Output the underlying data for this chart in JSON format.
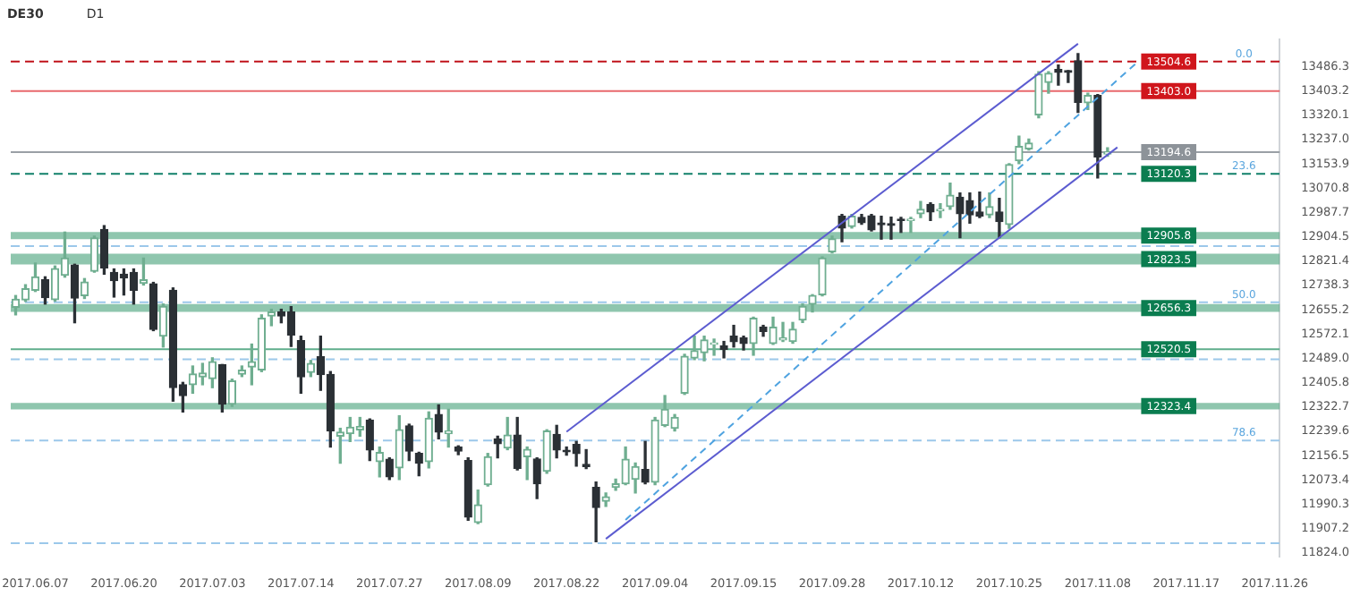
{
  "chart_data": {
    "type": "candlestick",
    "title": "DE30",
    "subtitle": "D1",
    "categories": [
      null,
      null,
      "2017.06.07",
      null,
      null,
      null,
      null,
      null,
      null,
      null,
      null,
      "2017.06.20",
      null,
      null,
      null,
      null,
      null,
      null,
      null,
      null,
      "2017.07.03",
      null,
      null,
      null,
      null,
      null,
      null,
      null,
      null,
      "2017.07.14",
      null,
      null,
      null,
      null,
      null,
      null,
      null,
      null,
      "2017.07.27",
      null,
      null,
      null,
      null,
      null,
      null,
      null,
      null,
      "2017.08.09",
      null,
      null,
      null,
      null,
      null,
      null,
      null,
      null,
      "2017.08.22",
      null,
      null,
      null,
      null,
      null,
      null,
      null,
      null,
      "2017.09.04",
      null,
      null,
      null,
      null,
      null,
      null,
      null,
      null,
      "2017.09.15",
      null,
      null,
      null,
      null,
      null,
      null,
      null,
      null,
      "2017.09.28",
      null,
      null,
      null,
      null,
      null,
      null,
      null,
      null,
      "2017.10.12",
      null,
      null,
      null,
      null,
      null,
      null,
      null,
      null,
      "2017.10.25",
      null,
      null,
      null,
      null,
      null,
      null,
      null,
      null,
      "2017.11.08",
      null,
      null,
      null,
      null,
      null,
      null,
      null,
      null,
      "2017.11.17",
      null,
      null,
      null,
      null,
      null,
      null,
      null,
      null,
      "2017.11.26"
    ],
    "ohlc": [
      [
        12664,
        12704,
        12638,
        12691
      ],
      [
        12689,
        12741,
        12684,
        12727
      ],
      [
        12722,
        12815,
        12718,
        12768
      ],
      [
        12758,
        12768,
        12675,
        12697
      ],
      [
        12690,
        12805,
        12685,
        12796
      ],
      [
        12773,
        12921,
        12767,
        12832
      ],
      [
        12808,
        12811,
        12611,
        12695
      ],
      [
        12704,
        12762,
        12694,
        12750
      ],
      [
        12787,
        12907,
        12784,
        12901
      ],
      [
        12930,
        12943,
        12777,
        12799
      ],
      [
        12783,
        12795,
        12699,
        12755
      ],
      [
        12777,
        12795,
        12706,
        12764
      ],
      [
        12783,
        12795,
        12675,
        12722
      ],
      [
        12746,
        12832,
        12740,
        12758
      ],
      [
        12744,
        12749,
        12584,
        12588
      ],
      [
        12565,
        12675,
        12528,
        12667
      ],
      [
        12722,
        12730,
        12343,
        12389
      ],
      [
        12399,
        12407,
        12306,
        12362
      ],
      [
        12399,
        12463,
        12370,
        12436
      ],
      [
        12426,
        12472,
        12399,
        12439
      ],
      [
        12420,
        12491,
        12389,
        12478
      ],
      [
        12468,
        12468,
        12306,
        12333
      ],
      [
        12333,
        12418,
        12325,
        12412
      ],
      [
        12435,
        12463,
        12427,
        12449
      ],
      [
        12460,
        12538,
        12399,
        12478
      ],
      [
        12450,
        12638,
        12444,
        12626
      ],
      [
        12634,
        12657,
        12601,
        12648
      ],
      [
        12648,
        12657,
        12611,
        12634
      ],
      [
        12648,
        12666,
        12530,
        12569
      ],
      [
        12550,
        12565,
        12370,
        12426
      ],
      [
        12441,
        12482,
        12427,
        12472
      ],
      [
        12495,
        12565,
        12380,
        12434
      ],
      [
        12434,
        12444,
        12186,
        12241
      ],
      [
        12223,
        12250,
        12131,
        12237
      ],
      [
        12232,
        12287,
        12205,
        12254
      ],
      [
        12245,
        12287,
        12223,
        12256
      ],
      [
        12278,
        12282,
        12140,
        12176
      ],
      [
        12136,
        12186,
        12084,
        12167
      ],
      [
        12144,
        12149,
        12075,
        12084
      ],
      [
        12115,
        12293,
        12075,
        12245
      ],
      [
        12258,
        12264,
        12140,
        12172
      ],
      [
        12164,
        12168,
        12088,
        12131
      ],
      [
        12136,
        12306,
        12115,
        12284
      ],
      [
        12297,
        12330,
        12214,
        12237
      ],
      [
        12232,
        12315,
        12186,
        12241
      ],
      [
        12186,
        12190,
        12160,
        12172
      ],
      [
        12140,
        12149,
        11936,
        11946
      ],
      [
        11928,
        12039,
        11924,
        11988
      ],
      [
        12057,
        12164,
        12053,
        12153
      ],
      [
        12214,
        12223,
        12149,
        12197
      ],
      [
        12183,
        12287,
        12177,
        12227
      ],
      [
        12227,
        12287,
        12108,
        12113
      ],
      [
        12153,
        12186,
        12075,
        12178
      ],
      [
        12145,
        12149,
        12010,
        12060
      ],
      [
        12103,
        12245,
        12096,
        12241
      ],
      [
        12229,
        12260,
        12149,
        12176
      ],
      [
        12175,
        12186,
        12158,
        12170
      ],
      [
        12195,
        12205,
        12121,
        12164
      ],
      [
        12127,
        12177,
        12112,
        12119
      ],
      [
        12048,
        12066,
        11862,
        11979
      ],
      [
        12001,
        12029,
        11983,
        12016
      ],
      [
        12048,
        12076,
        12038,
        12060
      ],
      [
        12060,
        12186,
        12057,
        12144
      ],
      [
        12076,
        12131,
        12029,
        12119
      ],
      [
        12109,
        12205,
        12060,
        12066
      ],
      [
        12066,
        12287,
        12057,
        12278
      ],
      [
        12260,
        12362,
        12256,
        12315
      ],
      [
        12250,
        12297,
        12241,
        12287
      ],
      [
        12370,
        12503,
        12366,
        12496
      ],
      [
        12490,
        12565,
        12485,
        12515
      ],
      [
        12509,
        12565,
        12481,
        12552
      ],
      [
        12537,
        12555,
        12500,
        12542
      ],
      [
        12532,
        12547,
        12491,
        12520
      ],
      [
        12565,
        12602,
        12528,
        12546
      ],
      [
        12559,
        12565,
        12518,
        12540
      ],
      [
        12540,
        12630,
        12500,
        12626
      ],
      [
        12596,
        12602,
        12565,
        12581
      ],
      [
        12540,
        12630,
        12537,
        12596
      ],
      [
        12552,
        12612,
        12547,
        12559
      ],
      [
        12547,
        12612,
        12541,
        12589
      ],
      [
        12620,
        12675,
        12612,
        12667
      ],
      [
        12675,
        12707,
        12648,
        12704
      ],
      [
        12707,
        12836,
        12703,
        12832
      ],
      [
        12854,
        12907,
        12850,
        12898
      ],
      [
        12975,
        12981,
        12888,
        12935
      ],
      [
        12940,
        12981,
        12935,
        12975
      ],
      [
        12971,
        12981,
        12948,
        12953
      ],
      [
        12977,
        12981,
        12925,
        12929
      ],
      [
        12952,
        12975,
        12897,
        12946
      ],
      [
        12950,
        12972,
        12897,
        12944
      ],
      [
        12965,
        12971,
        12920,
        12961
      ],
      [
        12961,
        12971,
        12920,
        12965
      ],
      [
        12984,
        13026,
        12971,
        12999
      ],
      [
        13016,
        13021,
        12961,
        12990
      ],
      [
        12994,
        13018,
        12971,
        12999
      ],
      [
        13008,
        13088,
        12999,
        13047
      ],
      [
        13040,
        13055,
        12902,
        12984
      ],
      [
        13029,
        13055,
        12952,
        12980
      ],
      [
        12990,
        13058,
        12971,
        12975
      ],
      [
        12980,
        13055,
        12971,
        13008
      ],
      [
        12990,
        13036,
        12902,
        12957
      ],
      [
        12947,
        13155,
        12934,
        13152
      ],
      [
        13165,
        13249,
        13155,
        13214
      ],
      [
        13206,
        13239,
        13202,
        13225
      ],
      [
        13322,
        13469,
        13312,
        13461
      ],
      [
        13433,
        13469,
        13396,
        13464
      ],
      [
        13477,
        13492,
        13424,
        13467
      ],
      [
        13473,
        13473,
        13433,
        13467
      ],
      [
        13507,
        13531,
        13330,
        13365
      ],
      [
        13363,
        13396,
        13340,
        13388
      ],
      [
        13388,
        13391,
        13106,
        13178
      ],
      [
        13188,
        13209,
        13180,
        13194.6
      ],
      null,
      null,
      null,
      null,
      null,
      null,
      null,
      null,
      null,
      null,
      null,
      null,
      null,
      null,
      null,
      null,
      null
    ],
    "series": [
      {
        "type": "line",
        "color": "#5c5cd0",
        "values": [
          null,
          null,
          null,
          null,
          null,
          null,
          null,
          null,
          null,
          null,
          null,
          null,
          null,
          null,
          null,
          null,
          null,
          null,
          null,
          null,
          null,
          null,
          null,
          null,
          null,
          null,
          null,
          null,
          null,
          null,
          null,
          null,
          null,
          null,
          null,
          null,
          null,
          null,
          null,
          null,
          null,
          null,
          null,
          null,
          null,
          null,
          null,
          null,
          null,
          null,
          null,
          null,
          null,
          null,
          null,
          null,
          12238,
          null,
          null,
          null,
          null,
          null,
          null,
          null,
          null,
          null,
          null,
          null,
          null,
          null,
          null,
          null,
          null,
          null,
          null,
          null,
          null,
          null,
          null,
          null,
          null,
          null,
          null,
          null,
          null,
          null,
          null,
          null,
          null,
          null,
          null,
          null,
          null,
          null,
          null,
          null,
          null,
          null,
          null,
          null,
          null,
          null,
          null,
          null,
          null,
          null,
          null,
          null,
          13565,
          null,
          null,
          null,
          null,
          null,
          null,
          null,
          null,
          null,
          null,
          null,
          null,
          null,
          null,
          null,
          null,
          null,
          null,
          null,
          null
        ]
      },
      {
        "type": "line",
        "color": "#5c5cd0",
        "values": [
          null,
          null,
          null,
          null,
          null,
          null,
          null,
          null,
          null,
          null,
          null,
          null,
          null,
          null,
          null,
          null,
          null,
          null,
          null,
          null,
          null,
          null,
          null,
          null,
          null,
          null,
          null,
          null,
          null,
          null,
          null,
          null,
          null,
          null,
          null,
          null,
          null,
          null,
          null,
          null,
          null,
          null,
          null,
          null,
          null,
          null,
          null,
          null,
          null,
          null,
          null,
          null,
          null,
          null,
          null,
          null,
          null,
          null,
          null,
          null,
          11872,
          null,
          null,
          null,
          null,
          null,
          null,
          null,
          null,
          null,
          null,
          null,
          null,
          null,
          null,
          null,
          null,
          null,
          null,
          null,
          null,
          null,
          null,
          null,
          null,
          null,
          null,
          null,
          null,
          null,
          null,
          null,
          null,
          null,
          null,
          null,
          null,
          null,
          null,
          null,
          null,
          null,
          null,
          null,
          null,
          null,
          null,
          null,
          null,
          null,
          null,
          null,
          13211,
          null,
          null,
          null,
          null,
          null,
          null,
          null,
          null,
          null,
          null,
          null,
          null,
          null,
          null,
          null,
          null
        ]
      },
      {
        "type": "line",
        "color": "#4fa3e0",
        "line_style": "dashed",
        "values": [
          null,
          null,
          null,
          null,
          null,
          null,
          null,
          null,
          null,
          null,
          null,
          null,
          null,
          null,
          null,
          null,
          null,
          null,
          null,
          null,
          null,
          null,
          null,
          null,
          null,
          null,
          null,
          null,
          null,
          null,
          null,
          null,
          null,
          null,
          null,
          null,
          null,
          null,
          null,
          null,
          null,
          null,
          null,
          null,
          null,
          null,
          null,
          null,
          null,
          null,
          null,
          null,
          null,
          null,
          null,
          null,
          null,
          null,
          null,
          null,
          null,
          null,
          11937,
          null,
          null,
          null,
          null,
          null,
          null,
          null,
          null,
          null,
          null,
          null,
          null,
          null,
          null,
          null,
          null,
          null,
          null,
          null,
          null,
          null,
          null,
          null,
          null,
          null,
          null,
          null,
          null,
          null,
          null,
          null,
          null,
          null,
          null,
          null,
          null,
          null,
          null,
          null,
          null,
          null,
          null,
          null,
          null,
          null,
          null,
          null,
          null,
          null,
          null,
          null,
          13501,
          null,
          null,
          null,
          null,
          null,
          null,
          null,
          null,
          null,
          null,
          null,
          null,
          null,
          null
        ]
      }
    ],
    "ylim": [
      11810,
      13580
    ],
    "yticks": [
      13486.3,
      13403.2,
      13320.1,
      {
        "value": 13237,
        "label": "13237.0"
      },
      13153.9,
      13070.8,
      12987.7,
      12904.5,
      12821.4,
      12738.3,
      12655.2,
      12572.1,
      {
        "value": 12489,
        "label": "12489.0"
      },
      12405.8,
      12322.7,
      12239.6,
      12156.5,
      12073.4,
      11990.3,
      11907.2,
      {
        "value": 11824,
        "label": "11824.0"
      }
    ],
    "ref_lines": [
      {
        "axis": "y",
        "value": 13504.6,
        "label": "13504.6",
        "color": "#c0121a",
        "line_style": "dashed"
      },
      {
        "axis": "y",
        "value": 13403.0,
        "label": "13403.0",
        "color": "#e8686c"
      },
      {
        "axis": "y",
        "value": 13194.6,
        "label": "13194.6",
        "color": "#9aa0a6"
      },
      {
        "axis": "y",
        "value": 13120.3,
        "label": "13120.3",
        "color": "#11806a",
        "line_style": "dashed"
      },
      {
        "axis": "y",
        "value": 12873,
        "color": "#9cc8ea",
        "line_style": "dashed"
      },
      {
        "axis": "y",
        "value": 12681,
        "color": "#9cc8ea",
        "line_style": "dashed"
      },
      {
        "axis": "y",
        "value": 12520.5,
        "label": "12520.5",
        "color": "#5fae8c"
      },
      {
        "axis": "y",
        "value": 12486,
        "color": "#9cc8ea",
        "line_style": "dashed"
      },
      {
        "axis": "y",
        "value": 12208,
        "color": "#9cc8ea",
        "line_style": "dashed"
      },
      {
        "axis": "y",
        "value": 11857,
        "color": "#9cc8ea",
        "line_style": "dashed"
      }
    ],
    "bands": [
      {
        "axis": "y",
        "from": 12897,
        "to": 12921,
        "label": "12905.8",
        "color": "#5fae8c"
      },
      {
        "axis": "y",
        "from": 12810,
        "to": 12847,
        "label": "12823.5",
        "color": "#5fae8c"
      },
      {
        "axis": "y",
        "from": 12648,
        "to": 12675,
        "label": "12656.3",
        "color": "#5fae8c"
      },
      {
        "axis": "y",
        "from": 12315,
        "to": 12337,
        "label": "12323.4",
        "color": "#5fae8c"
      }
    ],
    "annotations": [
      {
        "text": "0.0",
        "y": 13504.6
      },
      {
        "text": "23.6",
        "y": 13120.3
      },
      {
        "text": "50.0",
        "y": 12681
      },
      {
        "text": "78.6",
        "y": 12208
      }
    ]
  }
}
